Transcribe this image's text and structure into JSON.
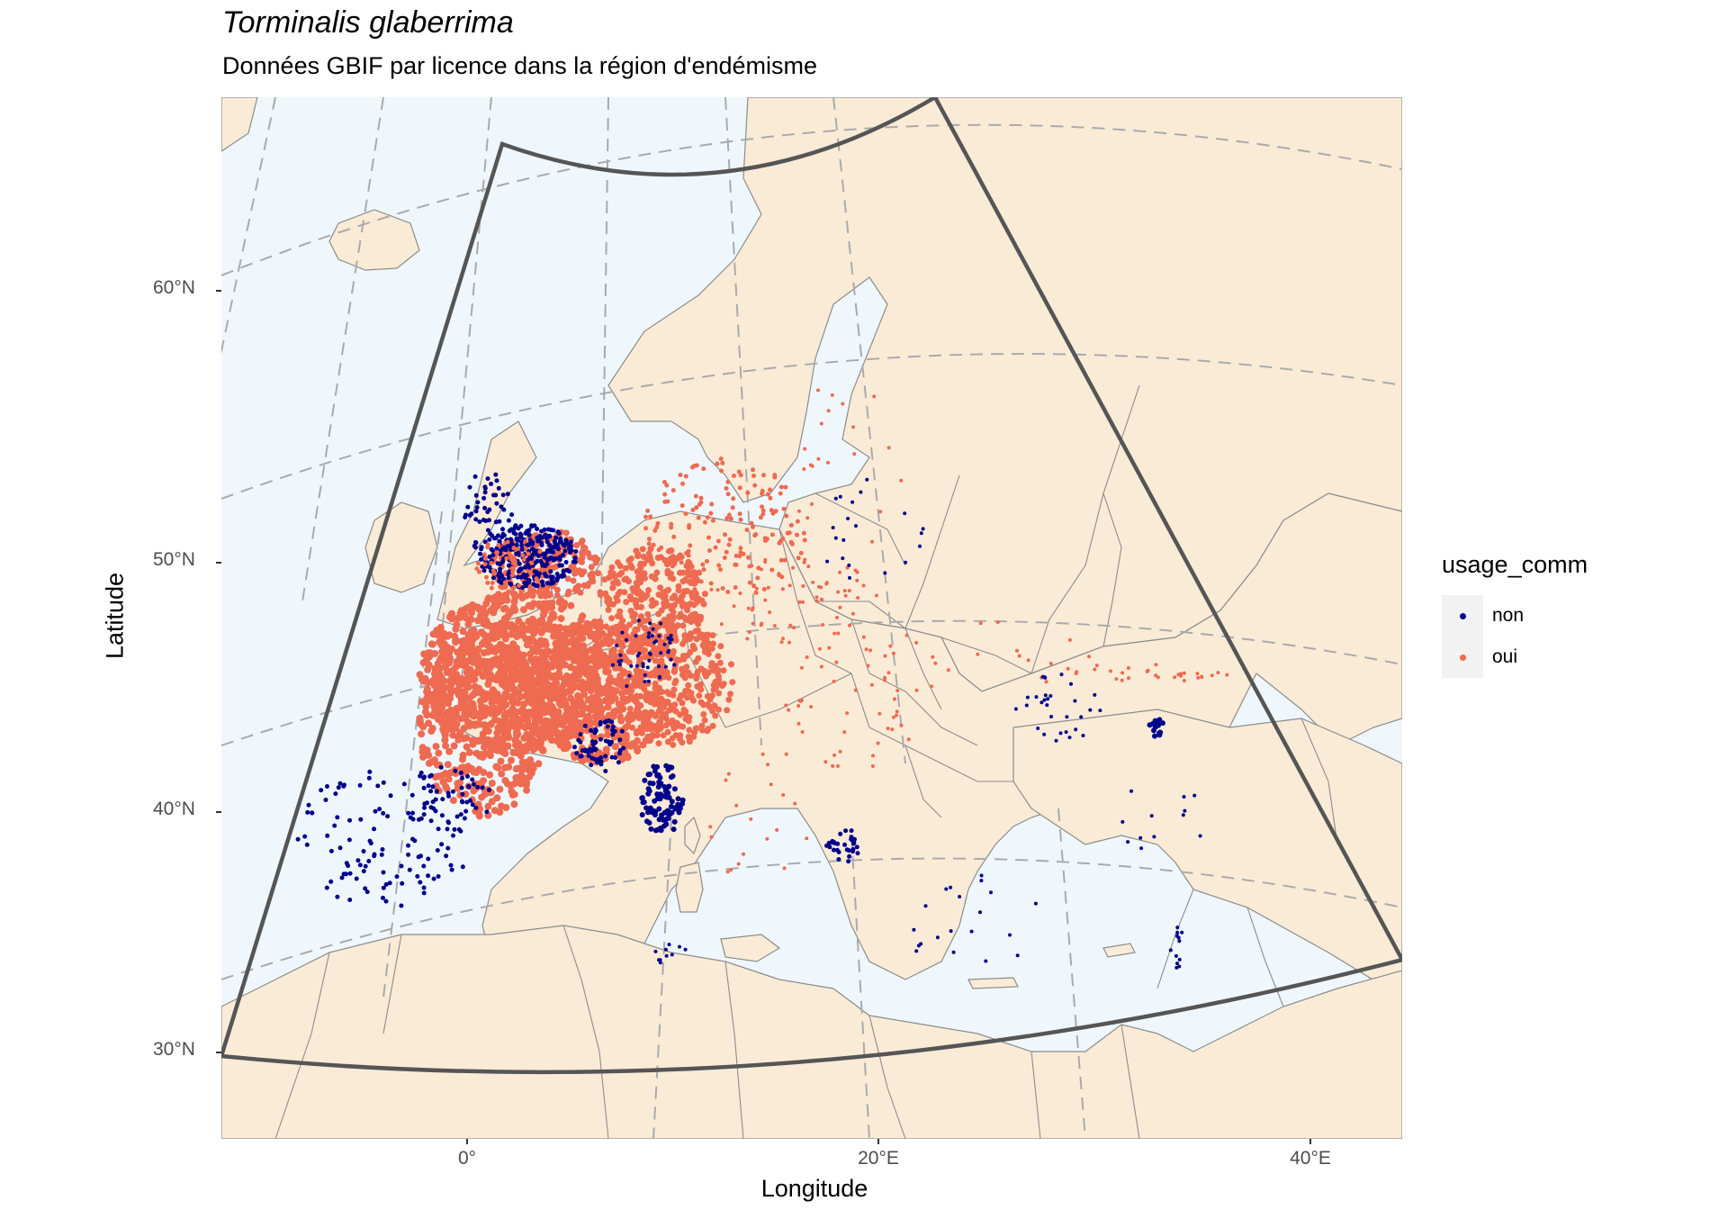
{
  "title": "Torminalis glaberrima",
  "subtitle": "Données GBIF par licence dans la région d'endémisme",
  "axes": {
    "xlabel": "Longitude",
    "ylabel": "Latitude",
    "xticks": [
      "0°",
      "20°E",
      "40°E"
    ],
    "yticks": [
      "30°N",
      "40°N",
      "50°N",
      "60°N"
    ]
  },
  "legend": {
    "title": "usage_comm",
    "placement": "right",
    "items": [
      {
        "label": "non",
        "color": "#00008b"
      },
      {
        "label": "oui",
        "color": "#ee6a50"
      }
    ]
  },
  "colors": {
    "land": "#faebd7",
    "sea": "#eff7fd",
    "border": "#8c8c8c",
    "graticule": "#aaaaaa",
    "region_outline": "#555555"
  }
}
